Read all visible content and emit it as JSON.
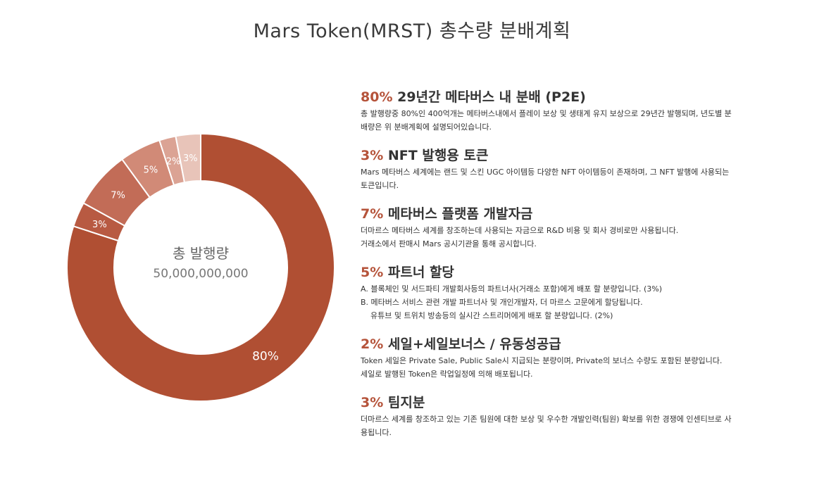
{
  "title": "Mars Token(MRST) 총수량 분배계획",
  "chart_data": {
    "type": "pie",
    "donut": true,
    "center_label": "총 발행량",
    "center_value": "50,000,000,000",
    "slices": [
      {
        "label": "80%",
        "value": 80,
        "color": "#b04f33"
      },
      {
        "label": "3%",
        "value": 3,
        "color": "#b85a42"
      },
      {
        "label": "7%",
        "value": 7,
        "color": "#c26c57"
      },
      {
        "label": "5%",
        "value": 5,
        "color": "#d18a77"
      },
      {
        "label": "2%",
        "value": 2,
        "color": "#dba394"
      },
      {
        "label": "3%",
        "value": 3,
        "color": "#e8c4b9"
      }
    ]
  },
  "sections": [
    {
      "pct": "80%",
      "title": "29년간 메타버스 내 분배 (P2E)",
      "lines": [
        "총 발행량중 80%인 400억개는 메타버스내에서 플레이 보상 및 생태계 유지 보상으로 29년간 발행되며, 년도별 분",
        "배량은 위 분배계획에 설명되어있습니다."
      ]
    },
    {
      "pct": "3%",
      "title": "NFT 발행용 토큰",
      "lines": [
        "Mars 메타버스 세계에는 랜드 및 스킨 UGC 아이템등 다양한 NFT 아이템등이 존재하며, 그 NFT 발행에 사용되는",
        "토큰입니다."
      ]
    },
    {
      "pct": "7%",
      "title": "메타버스 플랫폼 개발자금",
      "lines": [
        "더마르스 메타버스 세계를 창조하는데 사용되는 자금으로 R&D 비용 및 회사 경비로만 사용됩니다.",
        "거래소에서 판매시 Mars 공시기관을 통해 공시합니다."
      ]
    },
    {
      "pct": "5%",
      "title": "파트너 할당",
      "lines": [
        "A. 블록체인 및 서드파티 개발회사등의 파트너사(거래소 포함)에게 배포 할 분량입니다. (3%)",
        "B. 메타버스 서비스 관련 개발 파트너사 및 개인개발자, 더 마르스 고문에게 할당됩니다.",
        "유튜브 및 트위치 방송등의 실시간 스트리머에게 배포 할 분량입니다. (2%)"
      ]
    },
    {
      "pct": "2%",
      "title": "세일+세일보너스 / 유동성공급",
      "lines": [
        "Token 세일은 Private Sale, Public Sale시 지급되는 분량이며, Private의 보너스 수량도 포함된 분량입니다.",
        "세일로 발행된 Token은 락업일정에 의해 배포됩니다."
      ]
    },
    {
      "pct": "3%",
      "title": "팀지분",
      "lines": [
        "더마르스 세계를 창조하고 있는 기존 팀원에 대한 보상 및 우수한 개발인력(팀원) 확보를 위한 경쟁에 인센티브로 사",
        "용됩니다."
      ]
    }
  ]
}
